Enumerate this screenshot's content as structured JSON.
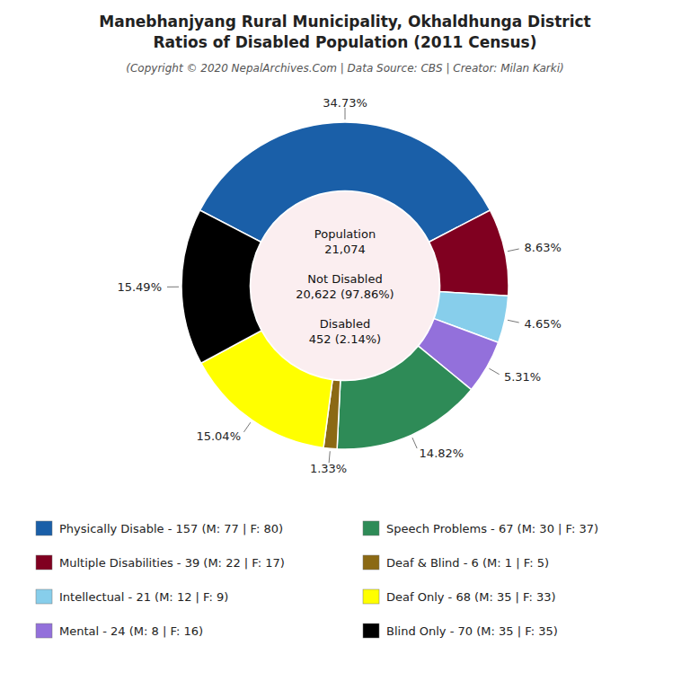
{
  "chart_data": {
    "type": "pie",
    "title": "Manebhanjyang Rural Municipality, Okhaldhunga District\nRatios of Disabled Population (2011 Census)",
    "subtitle": "(Copyright © 2020 NepalArchives.Com | Data Source: CBS | Creator: Milan Karki)",
    "categories": [
      "Physically Disable - 157 (M: 77 | F: 80)",
      "Multiple Disabilities - 39 (M: 22 | F: 17)",
      "Intellectual - 21 (M: 12 | F: 9)",
      "Mental - 24 (M: 8 | F: 16)",
      "Speech Problems - 67 (M: 30 | F: 37)",
      "Deaf & Blind - 6 (M: 1 | F: 5)",
      "Deaf Only - 68 (M: 35 | F: 33)",
      "Blind Only - 70 (M: 35 | F: 35)"
    ],
    "values": [
      34.73,
      8.63,
      4.65,
      5.31,
      14.82,
      1.33,
      15.04,
      15.49
    ],
    "value_labels": [
      "34.73%",
      "8.63%",
      "4.65%",
      "5.31%",
      "14.82%",
      "1.33%",
      "15.04%",
      "15.49%"
    ],
    "colors": [
      "#1a5fa8",
      "#800020",
      "#87ceeb",
      "#9370db",
      "#2e8b57",
      "#8b6914",
      "#ffff00",
      "#000000"
    ],
    "data_labels": true,
    "legend": "bottom",
    "annotations": [
      "Population\n21,074",
      "Not Disabled\n20,622 (97.86%)",
      "Disabled\n452 (2.14%)"
    ]
  }
}
